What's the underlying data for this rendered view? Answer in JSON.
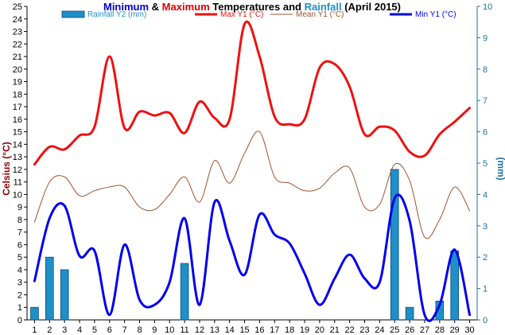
{
  "chart_data": {
    "type": "line",
    "title_parts": [
      {
        "text": "Minimum",
        "color": "#0000cc"
      },
      {
        "text": " & ",
        "color": "#000000"
      },
      {
        "text": "Maximum",
        "color": "#dd0000"
      },
      {
        "text": " Temperatures and ",
        "color": "#000000"
      },
      {
        "text": "Rainfall",
        "color": "#1f8fc8"
      },
      {
        "text": " (April 2015)",
        "color": "#000000"
      }
    ],
    "ylabel_left": "Celsius (°C)",
    "ylabel_right": "(mm)",
    "ylim_left": [
      0,
      25
    ],
    "ylim_right": [
      0,
      10
    ],
    "x": [
      1,
      2,
      3,
      4,
      5,
      6,
      7,
      8,
      9,
      10,
      11,
      12,
      13,
      14,
      15,
      16,
      17,
      18,
      19,
      20,
      21,
      22,
      23,
      24,
      25,
      26,
      27,
      28,
      29,
      30
    ],
    "y_ticks_left": [
      0,
      1,
      2,
      3,
      4,
      5,
      6,
      7,
      8,
      9,
      10,
      11,
      12,
      13,
      14,
      15,
      16,
      17,
      18,
      19,
      20,
      21,
      22,
      23,
      24,
      25
    ],
    "y_ticks_right": [
      0,
      1,
      2,
      3,
      4,
      5,
      6,
      7,
      8,
      9,
      10
    ],
    "legend": [
      {
        "label": "Rainfall Y2 (mm)",
        "kind": "bar",
        "color": "#1f8fc8"
      },
      {
        "label": "Max Y1 (°C)",
        "kind": "line",
        "color": "#ee1111"
      },
      {
        "label": "Mean Y1 (°C)",
        "kind": "line",
        "color": "#a0522d"
      },
      {
        "label": "Min Y1 (°C)",
        "kind": "line",
        "color": "#0000ee"
      }
    ],
    "series": [
      {
        "name": "Rainfall Y2 (mm)",
        "axis": "right",
        "type": "bar",
        "color": "#1f8fc8",
        "values": [
          0.4,
          2.0,
          1.6,
          0,
          0,
          0,
          0,
          0,
          0,
          0,
          1.8,
          0,
          0,
          0,
          0,
          0,
          0,
          0,
          0,
          0,
          0,
          0,
          0,
          0,
          4.8,
          0.4,
          0,
          0.6,
          2.2,
          0
        ]
      },
      {
        "name": "Max Y1 (°C)",
        "axis": "left",
        "type": "line",
        "color": "#ee1111",
        "width": 3,
        "values": [
          12.4,
          13.8,
          13.6,
          14.7,
          15.4,
          21.0,
          15.3,
          16.6,
          16.3,
          16.5,
          14.9,
          17.4,
          16.1,
          16.0,
          23.6,
          21.0,
          16.2,
          15.6,
          16.0,
          20.1,
          20.4,
          18.6,
          14.8,
          15.4,
          15.1,
          13.4,
          13.1,
          14.8,
          15.8,
          16.9
        ]
      },
      {
        "name": "Mean Y1 (°C)",
        "axis": "left",
        "type": "line",
        "color": "#a0522d",
        "width": 1,
        "values": [
          7.8,
          11.0,
          11.4,
          9.9,
          10.3,
          10.6,
          10.6,
          9.0,
          8.8,
          10.0,
          11.4,
          9.4,
          12.7,
          10.9,
          13.3,
          15.0,
          11.4,
          10.9,
          10.3,
          10.5,
          11.7,
          12.1,
          9.0,
          9.2,
          12.4,
          11.1,
          6.6,
          8.0,
          10.6,
          8.7
        ]
      },
      {
        "name": "Min Y1 (°C)",
        "axis": "left",
        "type": "line",
        "color": "#0000ee",
        "width": 3,
        "values": [
          3.1,
          8.1,
          9.1,
          5.1,
          5.5,
          0.4,
          6.0,
          1.6,
          1.2,
          3.0,
          8.1,
          1.2,
          9.4,
          6.3,
          3.6,
          8.4,
          6.8,
          6.1,
          3.7,
          1.2,
          3.3,
          5.2,
          3.3,
          3.0,
          9.7,
          7.9,
          0.4,
          1.2,
          5.6,
          0.4
        ]
      }
    ]
  }
}
